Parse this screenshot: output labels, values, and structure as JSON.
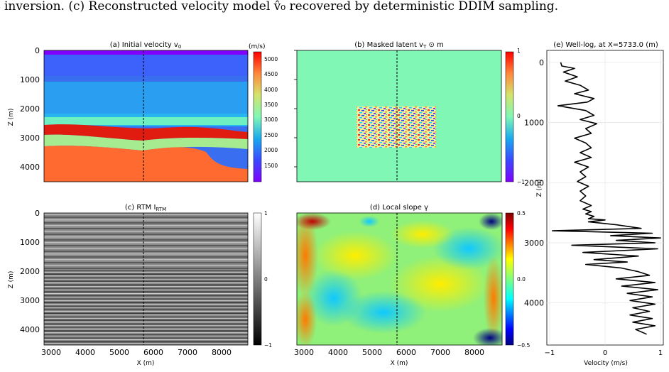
{
  "caption": "inversion. (c) Reconstructed velocity model v̂₀ recovered by deterministic DDIM sampling.",
  "panels": {
    "a": {
      "title": "(a) Initial velocity v",
      "title_sub": "0",
      "unit": "(m/s)",
      "cbar_ticks": [
        "5000",
        "4500",
        "4000",
        "3500",
        "3000",
        "2500",
        "2000",
        "1500"
      ]
    },
    "b": {
      "title": "(b) Masked latent v",
      "title_sub": "T",
      "title_suffix": " ⊙ m",
      "cbar_ticks": [
        "1",
        "0",
        "−1"
      ]
    },
    "c": {
      "title": "(c) RTM I",
      "title_sub": "RTM",
      "cbar_ticks": [
        "1",
        "0",
        "−1"
      ]
    },
    "d": {
      "title": "(d) Local slope γ",
      "cbar_ticks": [
        "0.5",
        "0.0",
        "−0.5"
      ]
    },
    "e": {
      "title": "(e) Well-log, at X=5733.0 (m)",
      "xticks": [
        "−1",
        "0",
        "1"
      ],
      "yticks": [
        "0",
        "1000",
        "2000",
        "3000",
        "4000"
      ],
      "xlabel": "Velocity (m/s)",
      "ylabel": "Z (m)"
    }
  },
  "axes": {
    "zlabel": "Z (m)",
    "xlabel": "X (m)",
    "zticks": [
      "0",
      "1000",
      "2000",
      "3000",
      "4000"
    ],
    "xticks": [
      "3000",
      "4000",
      "5000",
      "6000",
      "7000",
      "8000"
    ]
  },
  "colors": {
    "latent_background": "#80f7b5",
    "seismic_gray": "#808080",
    "well_line": "#000000"
  },
  "chart_data": [
    {
      "type": "heatmap",
      "title": "(a) Initial velocity v0",
      "xlabel": "",
      "ylabel": "Z (m)",
      "xlim": [
        2800,
        8800
      ],
      "ylim": [
        4500,
        0
      ],
      "colorbar_range": [
        1200,
        5200
      ],
      "colormap": "rainbow"
    },
    {
      "type": "heatmap",
      "title": "(b) Masked latent vT ⊙ m",
      "colorbar_range": [
        -1,
        1
      ],
      "colormap": "rainbow"
    },
    {
      "type": "heatmap",
      "title": "(c) RTM IRTM",
      "xlabel": "X (m)",
      "ylabel": "Z (m)",
      "colorbar_range": [
        -1,
        1
      ],
      "colormap": "gray"
    },
    {
      "type": "heatmap",
      "title": "(d) Local slope γ",
      "xlabel": "X (m)",
      "colorbar_range": [
        -0.5,
        0.5
      ],
      "colormap": "jet"
    },
    {
      "type": "line",
      "title": "(e) Well-log, at X=5733.0 (m)",
      "xlabel": "Velocity (m/s)",
      "ylabel": "Z (m)",
      "xlim": [
        -1.05,
        1.05
      ],
      "ylim": [
        4700,
        -200
      ],
      "grid": true,
      "series": [
        {
          "name": "",
          "x": [
            -0.8,
            -0.78,
            -0.55,
            -0.75,
            -0.5,
            -0.72,
            -0.45,
            -0.3,
            -0.55,
            -0.2,
            -0.32,
            -0.85,
            -0.35,
            -0.2,
            -0.45,
            -0.15,
            -0.35,
            -0.25,
            -0.55,
            -0.35,
            -0.25,
            -0.45,
            -0.25,
            -0.55,
            -0.3,
            -0.45,
            -0.35,
            -0.5,
            -0.3,
            -0.45,
            -0.35,
            -0.45,
            -0.25,
            -0.4,
            -0.25,
            -0.35,
            -0.2,
            -0.3,
            0.0,
            -0.3,
            0.2,
            0.65,
            -0.95,
            0.85,
            0.1,
            1.0,
            0.2,
            0.9,
            -0.6,
            0.95,
            -0.4,
            0.6,
            -0.2,
            0.4,
            -0.35,
            0.3,
            0.6,
            0.8,
            0.2,
            0.9,
            0.3,
            0.95,
            0.4,
            0.85,
            0.45,
            0.9,
            0.5,
            0.8,
            0.45,
            0.85,
            0.5,
            0.9,
            0.55,
            0.75
          ],
          "z": [
            0,
            60,
            100,
            160,
            240,
            310,
            380,
            460,
            520,
            600,
            660,
            720,
            800,
            880,
            950,
            1020,
            1100,
            1180,
            1260,
            1340,
            1420,
            1500,
            1580,
            1660,
            1740,
            1820,
            1900,
            1980,
            2060,
            2140,
            2220,
            2300,
            2380,
            2440,
            2480,
            2520,
            2560,
            2600,
            2620,
            2650,
            2700,
            2760,
            2800,
            2840,
            2880,
            2920,
            2960,
            3000,
            3040,
            3100,
            3160,
            3220,
            3280,
            3320,
            3360,
            3420,
            3480,
            3540,
            3600,
            3660,
            3720,
            3780,
            3840,
            3900,
            3960,
            4020,
            4080,
            4140,
            4200,
            4260,
            4320,
            4380,
            4440,
            4520
          ]
        }
      ]
    }
  ]
}
